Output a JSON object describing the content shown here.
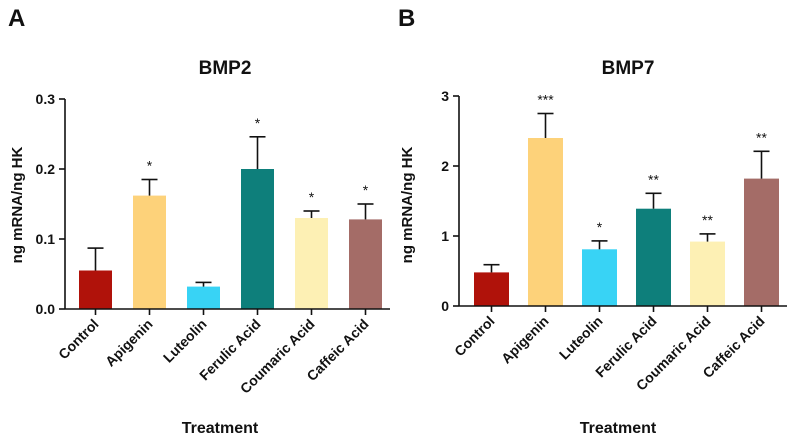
{
  "chart_data": [
    {
      "panel": "A",
      "type": "bar",
      "title": "BMP2",
      "xlabel": "Treatment",
      "ylabel": "ng mRNA/ng HK",
      "ylim": [
        0,
        0.3
      ],
      "yticks": [
        0.0,
        0.1,
        0.2,
        0.3
      ],
      "ytick_labels": [
        "0.0",
        "0.1",
        "0.2",
        "0.3"
      ],
      "categories": [
        "Control",
        "Apigenin",
        "Luteolin",
        "Ferulic Acid",
        "Coumaric Acid",
        "Caffeic Acid"
      ],
      "values": [
        0.055,
        0.162,
        0.032,
        0.2,
        0.13,
        0.128
      ],
      "errors": [
        0.032,
        0.023,
        0.006,
        0.046,
        0.01,
        0.022
      ],
      "significance": [
        "",
        "*",
        "",
        "*",
        "*",
        "*"
      ],
      "colors": [
        "#b0120a",
        "#fdd27a",
        "#38d3f5",
        "#0e7f7b",
        "#fdf0b4",
        "#a46c67"
      ]
    },
    {
      "panel": "B",
      "type": "bar",
      "title": "BMP7",
      "xlabel": "Treatment",
      "ylabel": "ng mRNA/ng HK",
      "ylim": [
        0,
        3
      ],
      "yticks": [
        0,
        1,
        2,
        3
      ],
      "ytick_labels": [
        "0",
        "1",
        "2",
        "3"
      ],
      "categories": [
        "Control",
        "Apigenin",
        "Luteolin",
        "Ferulic Acid",
        "Coumaric Acid",
        "Caffeic Acid"
      ],
      "values": [
        0.48,
        2.4,
        0.81,
        1.39,
        0.92,
        1.82
      ],
      "errors": [
        0.11,
        0.35,
        0.12,
        0.22,
        0.11,
        0.39
      ],
      "significance": [
        "",
        "***",
        "*",
        "**",
        "**",
        "**"
      ],
      "colors": [
        "#b0120a",
        "#fdd27a",
        "#38d3f5",
        "#0e7f7b",
        "#fdf0b4",
        "#a46c67"
      ]
    }
  ]
}
